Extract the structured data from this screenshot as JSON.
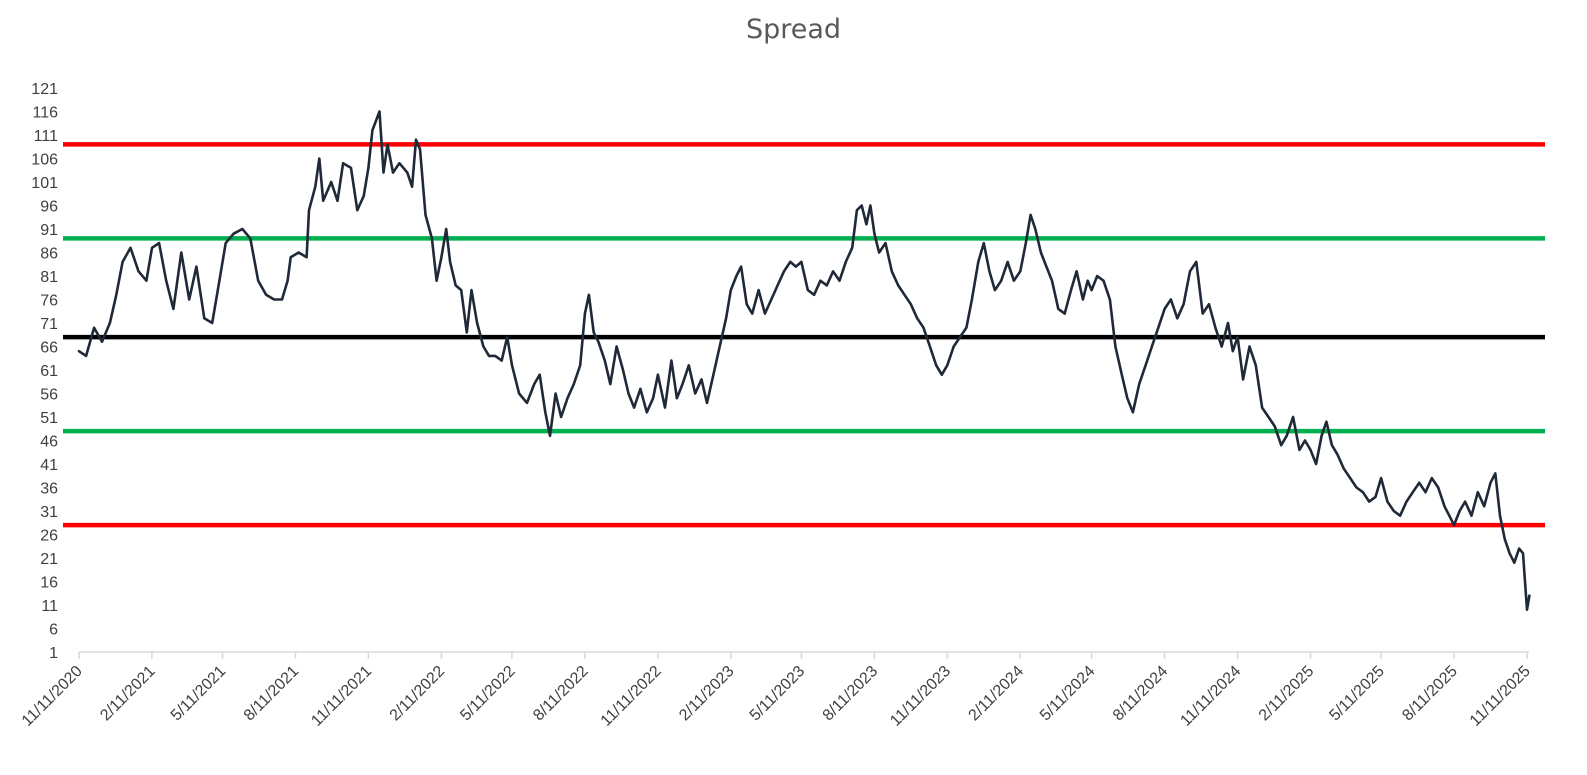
{
  "chart_data": {
    "type": "line",
    "title": "Spread",
    "xlabel": "",
    "ylabel": "",
    "ylim": [
      1,
      121
    ],
    "xlim": [
      "11/11/2020",
      "11/11/2025"
    ],
    "y_ticks": [
      1,
      6,
      11,
      16,
      21,
      26,
      31,
      36,
      41,
      46,
      51,
      56,
      61,
      66,
      71,
      76,
      81,
      86,
      91,
      96,
      101,
      106,
      111,
      116,
      121
    ],
    "x_tick_labels": [
      "11/11/2020",
      "2/11/2021",
      "5/11/2021",
      "8/11/2021",
      "11/11/2021",
      "2/11/2022",
      "5/11/2022",
      "8/11/2022",
      "11/11/2022",
      "2/11/2023",
      "5/11/2023",
      "8/11/2023",
      "11/11/2023",
      "2/11/2024",
      "5/11/2024",
      "8/11/2024",
      "11/11/2024",
      "2/11/2025",
      "5/11/2025",
      "8/11/2025",
      "11/11/2025"
    ],
    "grid": false,
    "legend": "none",
    "series": [
      {
        "color": "#1f2937",
        "points": [
          [
            "11/11/2020",
            65
          ],
          [
            "11/20/2020",
            64
          ],
          [
            "11/30/2020",
            70
          ],
          [
            "12/10/2020",
            67
          ],
          [
            "12/20/2020",
            71
          ],
          [
            "12/28/2020",
            77
          ],
          [
            "1/5/2021",
            84
          ],
          [
            "1/15/2021",
            87
          ],
          [
            "1/25/2021",
            82
          ],
          [
            "2/4/2021",
            80
          ],
          [
            "2/11/2021",
            87
          ],
          [
            "2/20/2021",
            88
          ],
          [
            "3/1/2021",
            80
          ],
          [
            "3/10/2021",
            74
          ],
          [
            "3/20/2021",
            86
          ],
          [
            "3/30/2021",
            76
          ],
          [
            "4/8/2021",
            83
          ],
          [
            "4/18/2021",
            72
          ],
          [
            "4/28/2021",
            71
          ],
          [
            "5/5/2021",
            78
          ],
          [
            "5/15/2021",
            88
          ],
          [
            "5/25/2021",
            90
          ],
          [
            "6/5/2021",
            91
          ],
          [
            "6/15/2021",
            89
          ],
          [
            "6/25/2021",
            80
          ],
          [
            "7/5/2021",
            77
          ],
          [
            "7/15/2021",
            76
          ],
          [
            "7/25/2021",
            76
          ],
          [
            "8/1/2021",
            80
          ],
          [
            "8/5/2021",
            85
          ],
          [
            "8/15/2021",
            86
          ],
          [
            "8/25/2021",
            85
          ],
          [
            "8/28/2021",
            95
          ],
          [
            "9/5/2021",
            100
          ],
          [
            "9/10/2021",
            106
          ],
          [
            "9/15/2021",
            97
          ],
          [
            "9/25/2021",
            101
          ],
          [
            "10/3/2021",
            97
          ],
          [
            "10/10/2021",
            105
          ],
          [
            "10/20/2021",
            104
          ],
          [
            "10/28/2021",
            95
          ],
          [
            "11/5/2021",
            98
          ],
          [
            "11/11/2021",
            104
          ],
          [
            "11/16/2021",
            112
          ],
          [
            "11/25/2021",
            116
          ],
          [
            "11/30/2021",
            103
          ],
          [
            "12/5/2021",
            109
          ],
          [
            "12/12/2021",
            103
          ],
          [
            "12/20/2021",
            105
          ],
          [
            "12/30/2021",
            103
          ],
          [
            "1/5/2022",
            100
          ],
          [
            "1/10/2022",
            110
          ],
          [
            "1/15/2022",
            108
          ],
          [
            "1/22/2022",
            94
          ],
          [
            "1/30/2022",
            89
          ],
          [
            "2/5/2022",
            80
          ],
          [
            "2/11/2022",
            85
          ],
          [
            "2/17/2022",
            91
          ],
          [
            "2/22/2022",
            84
          ],
          [
            "3/1/2022",
            79
          ],
          [
            "3/8/2022",
            78
          ],
          [
            "3/15/2022",
            69
          ],
          [
            "3/21/2022",
            78
          ],
          [
            "3/28/2022",
            71
          ],
          [
            "4/5/2022",
            66
          ],
          [
            "4/12/2022",
            64
          ],
          [
            "4/20/2022",
            64
          ],
          [
            "4/28/2022",
            63
          ],
          [
            "5/5/2022",
            68
          ],
          [
            "5/11/2022",
            62
          ],
          [
            "5/20/2022",
            56
          ],
          [
            "5/30/2022",
            54
          ],
          [
            "6/8/2022",
            58
          ],
          [
            "6/15/2022",
            60
          ],
          [
            "6/22/2022",
            52
          ],
          [
            "6/28/2022",
            47
          ],
          [
            "7/5/2022",
            56
          ],
          [
            "7/12/2022",
            51
          ],
          [
            "7/20/2022",
            55
          ],
          [
            "7/28/2022",
            58
          ],
          [
            "8/5/2022",
            62
          ],
          [
            "8/11/2022",
            73
          ],
          [
            "8/16/2022",
            77
          ],
          [
            "8/22/2022",
            69
          ],
          [
            "8/28/2022",
            67
          ],
          [
            "9/5/2022",
            63
          ],
          [
            "9/12/2022",
            58
          ],
          [
            "9/20/2022",
            66
          ],
          [
            "9/28/2022",
            61
          ],
          [
            "10/5/2022",
            56
          ],
          [
            "10/12/2022",
            53
          ],
          [
            "10/20/2022",
            57
          ],
          [
            "10/28/2022",
            52
          ],
          [
            "11/5/2022",
            55
          ],
          [
            "11/11/2022",
            60
          ],
          [
            "11/20/2022",
            53
          ],
          [
            "11/28/2022",
            63
          ],
          [
            "12/5/2022",
            55
          ],
          [
            "12/12/2022",
            58
          ],
          [
            "12/20/2022",
            62
          ],
          [
            "12/28/2022",
            56
          ],
          [
            "1/5/2023",
            59
          ],
          [
            "1/12/2023",
            54
          ],
          [
            "1/20/2023",
            60
          ],
          [
            "1/28/2023",
            66
          ],
          [
            "2/5/2023",
            72
          ],
          [
            "2/11/2023",
            78
          ],
          [
            "2/18/2023",
            81
          ],
          [
            "2/24/2023",
            83
          ],
          [
            "3/3/2023",
            75
          ],
          [
            "3/10/2023",
            73
          ],
          [
            "3/18/2023",
            78
          ],
          [
            "3/26/2023",
            73
          ],
          [
            "4/3/2023",
            76
          ],
          [
            "4/11/2023",
            79
          ],
          [
            "4/19/2023",
            82
          ],
          [
            "4/27/2023",
            84
          ],
          [
            "5/4/2023",
            83
          ],
          [
            "5/11/2023",
            84
          ],
          [
            "5/19/2023",
            78
          ],
          [
            "5/27/2023",
            77
          ],
          [
            "6/4/2023",
            80
          ],
          [
            "6/12/2023",
            79
          ],
          [
            "6/20/2023",
            82
          ],
          [
            "6/28/2023",
            80
          ],
          [
            "7/6/2023",
            84
          ],
          [
            "7/14/2023",
            87
          ],
          [
            "7/20/2023",
            95
          ],
          [
            "7/26/2023",
            96
          ],
          [
            "8/1/2023",
            92
          ],
          [
            "8/6/2023",
            96
          ],
          [
            "8/11/2023",
            90
          ],
          [
            "8/17/2023",
            86
          ],
          [
            "8/25/2023",
            88
          ],
          [
            "9/2/2023",
            82
          ],
          [
            "9/10/2023",
            79
          ],
          [
            "9/18/2023",
            77
          ],
          [
            "9/26/2023",
            75
          ],
          [
            "10/4/2023",
            72
          ],
          [
            "10/12/2023",
            70
          ],
          [
            "10/20/2023",
            66
          ],
          [
            "10/28/2023",
            62
          ],
          [
            "11/4/2023",
            60
          ],
          [
            "11/11/2023",
            62
          ],
          [
            "11/19/2023",
            66
          ],
          [
            "11/27/2023",
            68
          ],
          [
            "12/5/2023",
            70
          ],
          [
            "12/12/2023",
            76
          ],
          [
            "12/20/2023",
            84
          ],
          [
            "12/27/2023",
            88
          ],
          [
            "1/3/2024",
            82
          ],
          [
            "1/10/2024",
            78
          ],
          [
            "1/18/2024",
            80
          ],
          [
            "1/26/2024",
            84
          ],
          [
            "2/3/2024",
            80
          ],
          [
            "2/11/2024",
            82
          ],
          [
            "2/18/2024",
            88
          ],
          [
            "2/24/2024",
            94
          ],
          [
            "3/1/2024",
            91
          ],
          [
            "3/8/2024",
            86
          ],
          [
            "3/15/2024",
            83
          ],
          [
            "3/22/2024",
            80
          ],
          [
            "3/30/2024",
            74
          ],
          [
            "4/7/2024",
            73
          ],
          [
            "4/15/2024",
            78
          ],
          [
            "4/22/2024",
            82
          ],
          [
            "4/30/2024",
            76
          ],
          [
            "5/6/2024",
            80
          ],
          [
            "5/11/2024",
            78
          ],
          [
            "5/18/2024",
            81
          ],
          [
            "5/26/2024",
            80
          ],
          [
            "6/3/2024",
            76
          ],
          [
            "6/10/2024",
            66
          ],
          [
            "6/18/2024",
            60
          ],
          [
            "6/25/2024",
            55
          ],
          [
            "7/2/2024",
            52
          ],
          [
            "7/10/2024",
            58
          ],
          [
            "7/18/2024",
            62
          ],
          [
            "7/26/2024",
            66
          ],
          [
            "8/3/2024",
            70
          ],
          [
            "8/11/2024",
            74
          ],
          [
            "8/19/2024",
            76
          ],
          [
            "8/27/2024",
            72
          ],
          [
            "9/4/2024",
            75
          ],
          [
            "9/12/2024",
            82
          ],
          [
            "9/20/2024",
            84
          ],
          [
            "9/28/2024",
            73
          ],
          [
            "10/6/2024",
            75
          ],
          [
            "10/14/2024",
            70
          ],
          [
            "10/22/2024",
            66
          ],
          [
            "10/30/2024",
            71
          ],
          [
            "11/5/2024",
            65
          ],
          [
            "11/11/2024",
            68
          ],
          [
            "11/18/2024",
            59
          ],
          [
            "11/26/2024",
            66
          ],
          [
            "12/4/2024",
            62
          ],
          [
            "12/12/2024",
            53
          ],
          [
            "12/20/2024",
            51
          ],
          [
            "12/28/2024",
            49
          ],
          [
            "1/5/2025",
            45
          ],
          [
            "1/12/2025",
            47
          ],
          [
            "1/20/2025",
            51
          ],
          [
            "1/28/2025",
            44
          ],
          [
            "2/4/2025",
            46
          ],
          [
            "2/11/2025",
            44
          ],
          [
            "2/18/2025",
            41
          ],
          [
            "2/25/2025",
            47
          ],
          [
            "3/3/2025",
            50
          ],
          [
            "3/10/2025",
            45
          ],
          [
            "3/17/2025",
            43
          ],
          [
            "3/25/2025",
            40
          ],
          [
            "4/2/2025",
            38
          ],
          [
            "4/10/2025",
            36
          ],
          [
            "4/18/2025",
            35
          ],
          [
            "4/26/2025",
            33
          ],
          [
            "5/4/2025",
            34
          ],
          [
            "5/11/2025",
            38
          ],
          [
            "5/19/2025",
            33
          ],
          [
            "5/27/2025",
            31
          ],
          [
            "6/4/2025",
            30
          ],
          [
            "6/12/2025",
            33
          ],
          [
            "6/20/2025",
            35
          ],
          [
            "6/28/2025",
            37
          ],
          [
            "7/6/2025",
            35
          ],
          [
            "7/14/2025",
            38
          ],
          [
            "7/22/2025",
            36
          ],
          [
            "7/30/2025",
            32
          ],
          [
            "8/5/2025",
            30
          ],
          [
            "8/11/2025",
            28
          ],
          [
            "8/18/2025",
            31
          ],
          [
            "8/25/2025",
            33
          ],
          [
            "9/2/2025",
            30
          ],
          [
            "9/10/2025",
            35
          ],
          [
            "9/18/2025",
            32
          ],
          [
            "9/26/2025",
            37
          ],
          [
            "10/2/2025",
            39
          ],
          [
            "10/8/2025",
            30
          ],
          [
            "10/14/2025",
            25
          ],
          [
            "10/20/2025",
            22
          ],
          [
            "10/26/2025",
            20
          ],
          [
            "11/1/2025",
            23
          ],
          [
            "11/6/2025",
            22
          ],
          [
            "11/11/2025",
            10
          ],
          [
            "11/14/2025",
            13
          ]
        ]
      }
    ],
    "reference_lines": [
      {
        "y": 109,
        "color": "#ff0000"
      },
      {
        "y": 89,
        "color": "#00b050"
      },
      {
        "y": 68,
        "color": "#000000"
      },
      {
        "y": 48,
        "color": "#00b050"
      },
      {
        "y": 28,
        "color": "#ff0000"
      }
    ]
  }
}
